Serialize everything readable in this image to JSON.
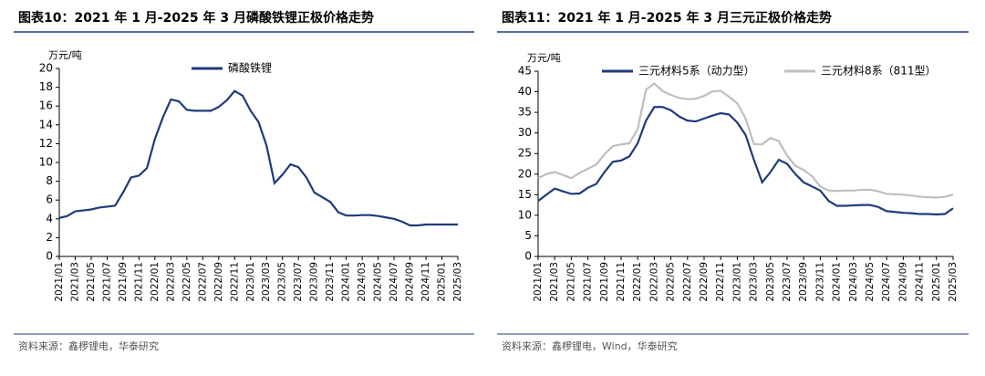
{
  "chart_data": [
    {
      "type": "line",
      "title": "图表10：2021 年 1 月-2025 年 3 月磷酸铁锂正极价格走势",
      "y_label": "万元/吨",
      "source": "资料来源：鑫椤锂电，华泰研究",
      "categories": [
        "2021/01",
        null,
        "2021/03",
        null,
        "2021/05",
        null,
        "2021/07",
        null,
        "2021/09",
        null,
        "2021/11",
        null,
        "2022/01",
        null,
        "2022/03",
        null,
        "2022/05",
        null,
        "2022/07",
        null,
        "2022/09",
        null,
        "2022/11",
        null,
        "2023/01",
        null,
        "2023/03",
        null,
        "2023/05",
        null,
        "2023/07",
        null,
        "2023/09",
        null,
        "2023/11",
        null,
        "2024/01",
        null,
        "2024/03",
        null,
        "2024/05",
        null,
        "2024/07",
        null,
        "2024/09",
        null,
        "2024/11",
        null,
        "2025/01",
        null,
        "2025/03"
      ],
      "ylim": [
        0,
        20
      ],
      "yticks": [
        0,
        2,
        4,
        6,
        8,
        10,
        12,
        14,
        16,
        18,
        20
      ],
      "series": [
        {
          "name": "磷酸铁锂",
          "color": "#1f3b7a",
          "values": [
            4.1,
            4.3,
            4.8,
            4.9,
            5.0,
            5.2,
            5.3,
            5.4,
            6.8,
            8.4,
            8.6,
            9.4,
            12.5,
            14.8,
            16.7,
            16.5,
            15.6,
            15.5,
            15.5,
            15.5,
            15.9,
            16.6,
            17.6,
            17.1,
            15.5,
            14.3,
            11.8,
            7.8,
            8.7,
            9.8,
            9.5,
            8.4,
            6.8,
            6.3,
            5.8,
            4.7,
            4.35,
            4.35,
            4.4,
            4.4,
            4.3,
            4.15,
            4.0,
            3.7,
            3.3,
            3.3,
            3.4,
            3.4,
            3.4,
            3.4,
            3.4
          ]
        }
      ]
    },
    {
      "type": "line",
      "title": "图表11：2021 年 1 月-2025 年 3 月三元正极价格走势",
      "y_label": "万元/吨",
      "source": "资料来源：鑫椤锂电，Wind，华泰研究",
      "categories": [
        "2021/01",
        null,
        "2021/03",
        null,
        "2021/05",
        null,
        "2021/07",
        null,
        "2021/09",
        null,
        "2021/11",
        null,
        "2022/01",
        null,
        "2022/03",
        null,
        "2022/05",
        null,
        "2022/07",
        null,
        "2022/09",
        null,
        "2022/11",
        null,
        "2023/01",
        null,
        "2023/03",
        null,
        "2023/05",
        null,
        "2023/07",
        null,
        "2023/09",
        null,
        "2023/11",
        null,
        "2024/01",
        null,
        "2024/03",
        null,
        "2024/05",
        null,
        "2024/07",
        null,
        "2024/09",
        null,
        "2024/11",
        null,
        "2025/01",
        null,
        "2025/03"
      ],
      "ylim": [
        0,
        45
      ],
      "yticks": [
        0,
        5,
        10,
        15,
        20,
        25,
        30,
        35,
        40,
        45
      ],
      "series": [
        {
          "name": "三元材料5系（动力型）",
          "color": "#1f3b7a",
          "values": [
            13.5,
            15,
            16.5,
            15.8,
            15.2,
            15.3,
            16.7,
            17.6,
            20.5,
            23,
            23.3,
            24.3,
            27.5,
            33,
            36.3,
            36.3,
            35.5,
            34,
            33,
            32.8,
            33.5,
            34.2,
            34.8,
            34.5,
            32.5,
            29.5,
            23.5,
            18,
            20.5,
            23.5,
            22.5,
            20,
            18,
            17,
            16,
            13.5,
            12.3,
            12.3,
            12.4,
            12.5,
            12.5,
            12,
            11,
            10.8,
            10.6,
            10.5,
            10.3,
            10.3,
            10.2,
            10.3,
            11.7
          ]
        },
        {
          "name": "三元材料8系（811型）",
          "color": "#bfbfbf",
          "values": [
            19,
            20,
            20.5,
            19.8,
            19,
            20.3,
            21.3,
            22.3,
            24.8,
            26.8,
            27.2,
            27.5,
            31,
            40.5,
            42,
            40.2,
            39.2,
            38.5,
            38.2,
            38.3,
            39,
            40.1,
            40.2,
            38.8,
            37.2,
            33.5,
            27.3,
            27.2,
            28.8,
            28,
            24.5,
            22,
            21,
            19.5,
            17,
            16,
            15.9,
            16,
            16,
            16.2,
            16.2,
            15.8,
            15.2,
            15.1,
            15,
            14.8,
            14.5,
            14.4,
            14.3,
            14.5,
            15
          ]
        }
      ]
    }
  ]
}
